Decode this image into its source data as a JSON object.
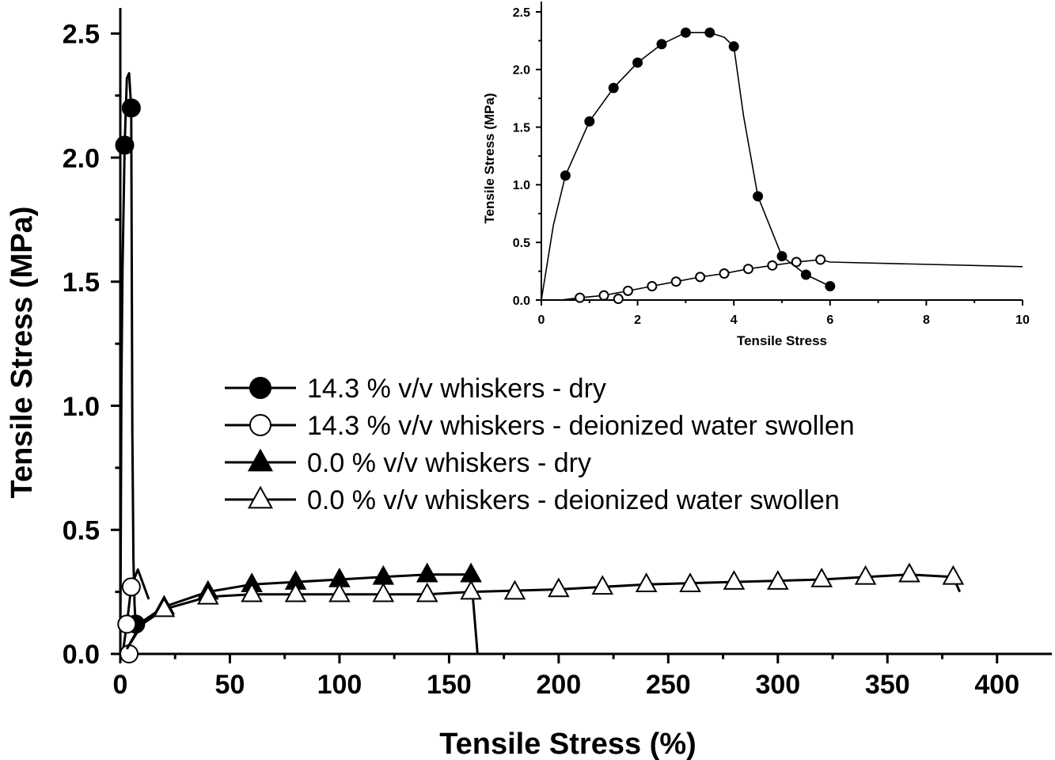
{
  "chart_data": [
    {
      "type": "line",
      "xlabel": "Tensile Stress (%)",
      "ylabel": "Tensile Stress (MPa)",
      "xlim": [
        0,
        425
      ],
      "ylim": [
        0,
        2.6
      ],
      "xticks": [
        0,
        50,
        100,
        150,
        200,
        250,
        300,
        350,
        400
      ],
      "yticks": [
        0.0,
        0.5,
        1.0,
        1.5,
        2.0,
        2.5
      ],
      "xtick_labels": [
        "0",
        "50",
        "100",
        "150",
        "200",
        "250",
        "300",
        "350",
        "400"
      ],
      "ytick_labels": [
        "0.0",
        "0.5",
        "1.0",
        "1.5",
        "2.0",
        "2.5"
      ],
      "legend_position": "center-right",
      "series": [
        {
          "name": "14.3 % v/v whiskers - dry",
          "marker": "filled-circle",
          "points": [
            [
              2,
              2.05
            ],
            [
              5,
              2.2
            ],
            [
              7,
              0.12
            ]
          ],
          "curve": [
            [
              0,
              0
            ],
            [
              0.5,
              1.08
            ],
            [
              1,
              1.55
            ],
            [
              2,
              2.05
            ],
            [
              3,
              2.32
            ],
            [
              4,
              2.34
            ],
            [
              5,
              2.2
            ],
            [
              5.5,
              0.9
            ],
            [
              6,
              0.38
            ],
            [
              6.5,
              0.2
            ],
            [
              7,
              0.12
            ]
          ]
        },
        {
          "name": "14.3 % v/v whiskers - deionized water swollen",
          "marker": "open-circle",
          "points": [
            [
              3,
              0.12
            ],
            [
              4,
              0.0
            ],
            [
              5,
              0.27
            ]
          ],
          "curve": [
            [
              1,
              0
            ],
            [
              3,
              0.12
            ],
            [
              5,
              0.27
            ],
            [
              8,
              0.34
            ],
            [
              13,
              0.22
            ]
          ]
        },
        {
          "name": "0.0 % v/v whiskers - dry",
          "marker": "filled-triangle",
          "points": [
            [
              20,
              0.19
            ],
            [
              40,
              0.25
            ],
            [
              60,
              0.28
            ],
            [
              80,
              0.29
            ],
            [
              100,
              0.3
            ],
            [
              120,
              0.31
            ],
            [
              140,
              0.32
            ],
            [
              160,
              0.32
            ]
          ],
          "curve": [
            [
              3,
              0.02
            ],
            [
              10,
              0.13
            ],
            [
              20,
              0.19
            ],
            [
              40,
              0.25
            ],
            [
              60,
              0.28
            ],
            [
              80,
              0.29
            ],
            [
              100,
              0.3
            ],
            [
              120,
              0.31
            ],
            [
              140,
              0.32
            ],
            [
              160,
              0.32
            ],
            [
              163,
              0.0
            ]
          ]
        },
        {
          "name": "0.0 % v/v whiskers - deionized water swollen",
          "marker": "open-triangle",
          "points": [
            [
              20,
              0.18
            ],
            [
              40,
              0.23
            ],
            [
              60,
              0.24
            ],
            [
              80,
              0.24
            ],
            [
              100,
              0.24
            ],
            [
              120,
              0.24
            ],
            [
              140,
              0.24
            ],
            [
              160,
              0.25
            ],
            [
              180,
              0.25
            ],
            [
              200,
              0.26
            ],
            [
              220,
              0.27
            ],
            [
              240,
              0.28
            ],
            [
              260,
              0.28
            ],
            [
              280,
              0.29
            ],
            [
              300,
              0.29
            ],
            [
              320,
              0.3
            ],
            [
              340,
              0.31
            ],
            [
              360,
              0.32
            ],
            [
              380,
              0.31
            ]
          ],
          "curve": [
            [
              3,
              0.02
            ],
            [
              10,
              0.12
            ],
            [
              20,
              0.18
            ],
            [
              40,
              0.23
            ],
            [
              60,
              0.24
            ],
            [
              100,
              0.24
            ],
            [
              140,
              0.24
            ],
            [
              160,
              0.25
            ],
            [
              200,
              0.26
            ],
            [
              240,
              0.28
            ],
            [
              280,
              0.29
            ],
            [
              320,
              0.3
            ],
            [
              360,
              0.32
            ],
            [
              380,
              0.31
            ],
            [
              383,
              0.25
            ]
          ]
        }
      ]
    },
    {
      "type": "line",
      "xlabel": "Tensile Stress",
      "ylabel": "Tensile Stress (MPa)",
      "xlim": [
        0,
        10
      ],
      "ylim": [
        0,
        2.5
      ],
      "xticks": [
        0,
        2,
        4,
        6,
        8,
        10
      ],
      "yticks": [
        0.0,
        0.5,
        1.0,
        1.5,
        2.0,
        2.5
      ],
      "xtick_labels": [
        "0",
        "2",
        "4",
        "6",
        "8",
        "10"
      ],
      "ytick_labels": [
        "0.0",
        "0.5",
        "1.0",
        "1.5",
        "2.0",
        "2.5"
      ],
      "legend_position": "none",
      "series": [
        {
          "marker": "filled-circle",
          "points": [
            [
              0.5,
              1.08
            ],
            [
              1.0,
              1.55
            ],
            [
              1.5,
              1.84
            ],
            [
              2.0,
              2.06
            ],
            [
              2.5,
              2.22
            ],
            [
              3.0,
              2.32
            ],
            [
              3.5,
              2.32
            ],
            [
              4.0,
              2.2
            ],
            [
              4.5,
              0.9
            ],
            [
              5.0,
              0.38
            ],
            [
              5.5,
              0.22
            ],
            [
              6.0,
              0.12
            ]
          ],
          "curve": [
            [
              0,
              0
            ],
            [
              0.25,
              0.65
            ],
            [
              0.5,
              1.08
            ],
            [
              1.0,
              1.55
            ],
            [
              1.5,
              1.84
            ],
            [
              2.0,
              2.06
            ],
            [
              2.5,
              2.22
            ],
            [
              3.0,
              2.32
            ],
            [
              3.5,
              2.32
            ],
            [
              3.8,
              2.28
            ],
            [
              4.0,
              2.2
            ],
            [
              4.2,
              1.6
            ],
            [
              4.5,
              0.9
            ],
            [
              5.0,
              0.38
            ],
            [
              5.5,
              0.22
            ],
            [
              6.0,
              0.12
            ]
          ]
        },
        {
          "marker": "open-circle",
          "points": [
            [
              0.8,
              0.02
            ],
            [
              1.3,
              0.04
            ],
            [
              1.6,
              0.01
            ],
            [
              1.8,
              0.08
            ],
            [
              2.3,
              0.12
            ],
            [
              2.8,
              0.16
            ],
            [
              3.3,
              0.2
            ],
            [
              3.8,
              0.23
            ],
            [
              4.3,
              0.27
            ],
            [
              4.8,
              0.3
            ],
            [
              5.3,
              0.33
            ],
            [
              5.8,
              0.35
            ]
          ],
          "curve": [
            [
              0.4,
              0.0
            ],
            [
              0.8,
              0.02
            ],
            [
              1.3,
              0.04
            ],
            [
              1.8,
              0.08
            ],
            [
              2.3,
              0.12
            ],
            [
              2.8,
              0.16
            ],
            [
              3.3,
              0.2
            ],
            [
              3.8,
              0.23
            ],
            [
              4.3,
              0.27
            ],
            [
              4.8,
              0.3
            ],
            [
              5.3,
              0.33
            ],
            [
              5.8,
              0.35
            ],
            [
              6.0,
              0.33
            ],
            [
              10.0,
              0.29
            ]
          ]
        }
      ]
    }
  ]
}
